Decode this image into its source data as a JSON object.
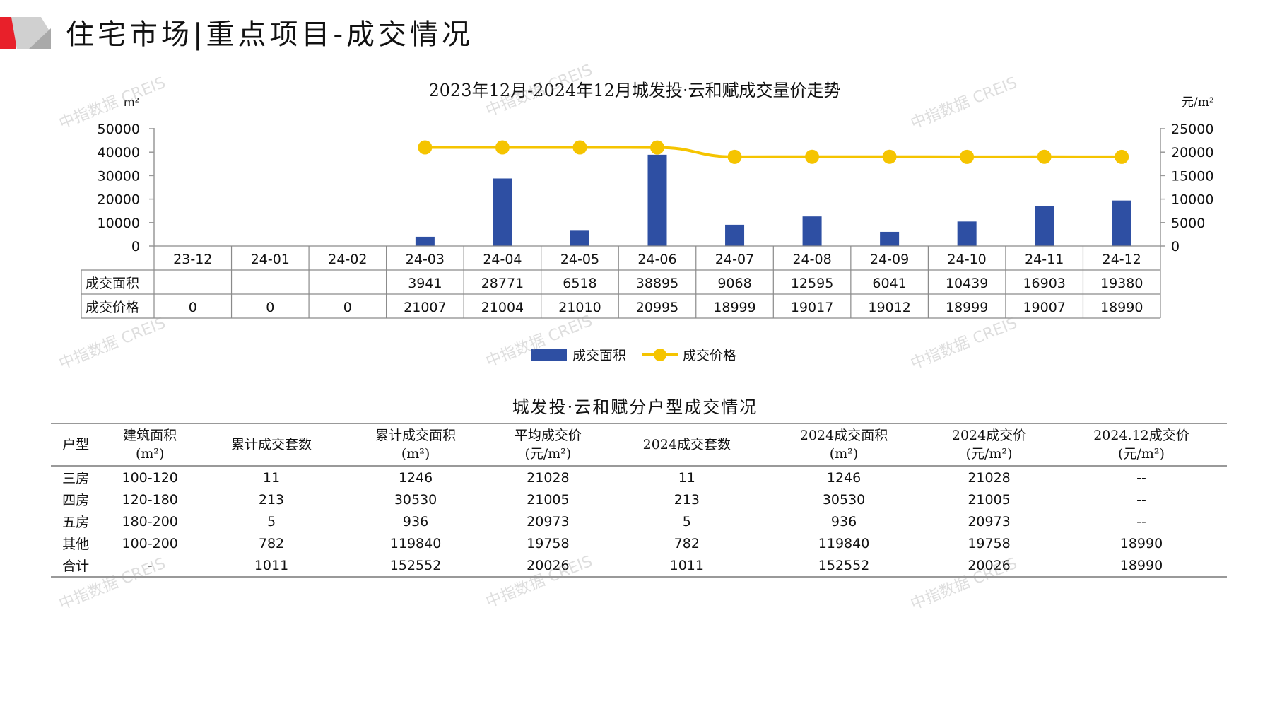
{
  "header": {
    "title": "住宅市场|重点项目-成交情况",
    "colors": {
      "accent_red": "#e8202a",
      "accent_gray": "#bfbfbf"
    }
  },
  "watermark": "中指数据 CREIS",
  "chart_data": {
    "type": "bar",
    "title": "2023年12月-2024年12月城发投·云和赋成交量价走势",
    "left_unit": "m²",
    "right_unit": "元/m²",
    "categories": [
      "23-12",
      "24-01",
      "24-02",
      "24-03",
      "24-04",
      "24-05",
      "24-06",
      "24-07",
      "24-08",
      "24-09",
      "24-10",
      "24-11",
      "24-12"
    ],
    "left_ylim": [
      0,
      50000
    ],
    "left_ticks": [
      0,
      10000,
      20000,
      30000,
      40000,
      50000
    ],
    "right_ylim": [
      0,
      25000
    ],
    "right_ticks": [
      0,
      5000,
      10000,
      15000,
      20000,
      25000
    ],
    "series": [
      {
        "name": "成交面积",
        "type": "bar",
        "axis": "left",
        "color": "#2e4fa3",
        "values": [
          null,
          null,
          null,
          3941,
          28771,
          6518,
          38895,
          9068,
          12595,
          6041,
          10439,
          16903,
          19380
        ],
        "labels": [
          "",
          "",
          "",
          "3941",
          "28771",
          "6518",
          "38895",
          "9068",
          "12595",
          "6041",
          "10439",
          "16903",
          "19380"
        ]
      },
      {
        "name": "成交价格",
        "type": "line",
        "axis": "right",
        "color": "#f5c400",
        "values": [
          0,
          0,
          0,
          21007,
          21004,
          21010,
          20995,
          18999,
          19017,
          19012,
          18999,
          19007,
          18990
        ],
        "labels": [
          "0",
          "0",
          "0",
          "21007",
          "21004",
          "21010",
          "20995",
          "18999",
          "19017",
          "19012",
          "18999",
          "19007",
          "18990"
        ]
      }
    ],
    "legend_position": "bottom",
    "grid": false
  },
  "table": {
    "title": "城发投·云和赋分户型成交情况",
    "headers": [
      [
        "户型"
      ],
      [
        "建筑面积",
        "(m²)"
      ],
      [
        "累计成交套数"
      ],
      [
        "累计成交面积",
        "(m²)"
      ],
      [
        "平均成交价",
        "(元/m²)"
      ],
      [
        "2024成交套数"
      ],
      [
        "2024成交面积",
        "(m²)"
      ],
      [
        "2024成交价",
        "(元/m²)"
      ],
      [
        "2024.12成交价",
        "(元/m²)"
      ]
    ],
    "rows": [
      [
        "三房",
        "100-120",
        "11",
        "1246",
        "21028",
        "11",
        "1246",
        "21028",
        "--"
      ],
      [
        "四房",
        "120-180",
        "213",
        "30530",
        "21005",
        "213",
        "30530",
        "21005",
        "--"
      ],
      [
        "五房",
        "180-200",
        "5",
        "936",
        "20973",
        "5",
        "936",
        "20973",
        "--"
      ],
      [
        "其他",
        "100-200",
        "782",
        "119840",
        "19758",
        "782",
        "119840",
        "19758",
        "18990"
      ],
      [
        "合计",
        "-",
        "1011",
        "152552",
        "20026",
        "1011",
        "152552",
        "20026",
        "18990"
      ]
    ]
  }
}
